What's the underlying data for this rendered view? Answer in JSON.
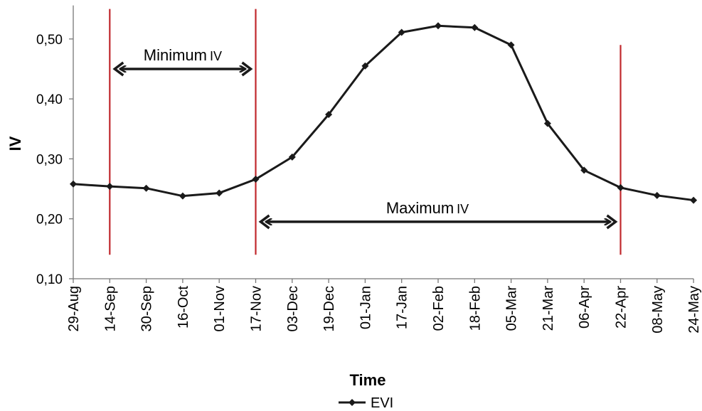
{
  "chart_data": {
    "type": "line",
    "xlabel": "Time",
    "ylabel": "IV",
    "ylim": [
      0.1,
      0.55
    ],
    "y_ticks": [
      "0,10",
      "0,20",
      "0,30",
      "0,40",
      "0,50"
    ],
    "grid": false,
    "legend_position": "bottom-center",
    "categories": [
      "29-Aug",
      "14-Sep",
      "30-Sep",
      "16-Oct",
      "01-Nov",
      "17-Nov",
      "03-Dec",
      "19-Dec",
      "01-Jan",
      "17-Jan",
      "02-Feb",
      "18-Feb",
      "05-Mar",
      "21-Mar",
      "06-Apr",
      "22-Apr",
      "08-May",
      "24-May"
    ],
    "series": [
      {
        "name": "EVI",
        "color": "#1a1a1a",
        "marker": "diamond",
        "values": [
          0.258,
          0.254,
          0.251,
          0.238,
          0.243,
          0.266,
          0.303,
          0.374,
          0.455,
          0.511,
          0.522,
          0.519,
          0.49,
          0.359,
          0.281,
          0.252,
          0.239,
          0.231
        ]
      }
    ],
    "vertical_lines": [
      {
        "at_category": "14-Sep",
        "color": "#c0282d",
        "from": 0.14,
        "to": 0.55
      },
      {
        "at_category": "17-Nov",
        "color": "#c0282d",
        "from": 0.14,
        "to": 0.55
      },
      {
        "at_category": "22-Apr",
        "color": "#c0282d",
        "from": 0.14,
        "to": 0.49
      }
    ],
    "annotations": [
      {
        "label_main": "Minimum",
        "label_suffix": "IV",
        "from": "14-Sep",
        "to": "17-Nov",
        "at_y": 0.45
      },
      {
        "label_main": "Maximum",
        "label_suffix": "IV",
        "from": "17-Nov",
        "to": "22-Apr",
        "at_y": 0.195
      }
    ]
  }
}
